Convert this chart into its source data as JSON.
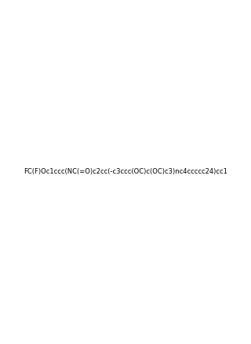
{
  "smiles": "FC(F)Oc1ccc(NC(=O)c2cc(-c3ccc(OC)c(OC)c3)nc4ccccc24)cc1",
  "title": "",
  "bg_color": "#ffffff",
  "line_color": "#000000",
  "figsize": [
    3.2,
    4.38
  ],
  "dpi": 100
}
